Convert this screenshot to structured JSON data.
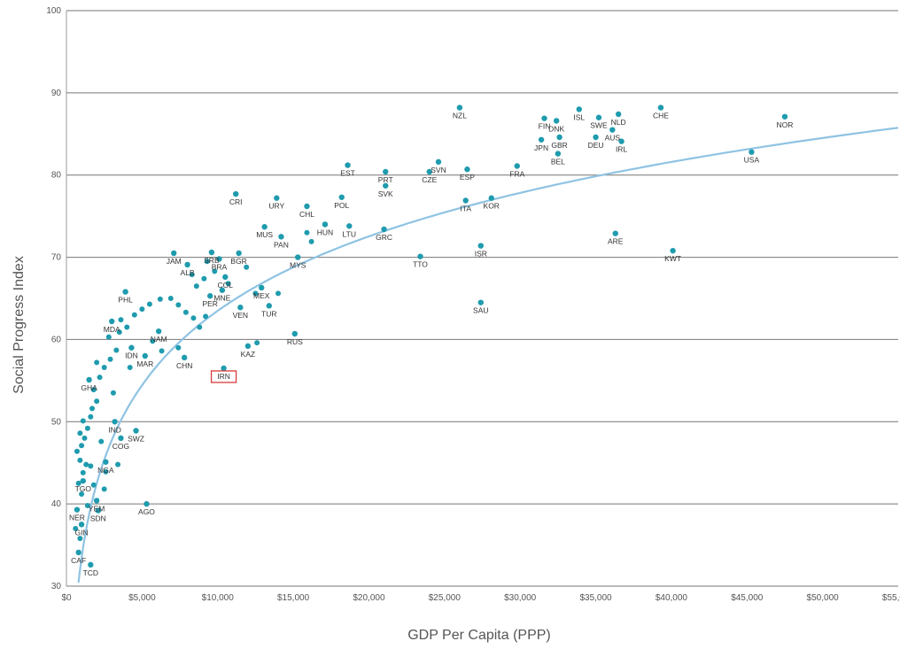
{
  "chart_data": {
    "type": "scatter",
    "xlabel": "GDP Per Capita (PPP)",
    "ylabel": "Social Progress Index",
    "xlim": [
      0,
      55000
    ],
    "ylim": [
      30,
      100
    ],
    "x_ticks": [
      {
        "value": 0,
        "label": "$0"
      },
      {
        "value": 5000,
        "label": "$5,000"
      },
      {
        "value": 10000,
        "label": "$10,000"
      },
      {
        "value": 15000,
        "label": "$15,000"
      },
      {
        "value": 20000,
        "label": "$20,000"
      },
      {
        "value": 25000,
        "label": "$25,000"
      },
      {
        "value": 30000,
        "label": "$30,000"
      },
      {
        "value": 35000,
        "label": "$35,000"
      },
      {
        "value": 40000,
        "label": "$40,000"
      },
      {
        "value": 45000,
        "label": "$45,000"
      },
      {
        "value": 50000,
        "label": "$50,000"
      },
      {
        "value": 55000,
        "label": "$55,000"
      }
    ],
    "y_ticks": [
      30,
      40,
      50,
      60,
      70,
      80,
      90,
      100
    ],
    "grid": "horizontal",
    "point_color": "#1f9bae",
    "trend_color": "#8fc3e3",
    "highlight_color": "#d83a3a",
    "highlight": "IRN",
    "trendline": {
      "type": "logarithmic",
      "a": 13.06,
      "b": -56.8
    },
    "labeled_points": [
      {
        "label": "NZL",
        "x": 26000,
        "y": 88.2
      },
      {
        "label": "CHE",
        "x": 39300,
        "y": 88.2
      },
      {
        "label": "NOR",
        "x": 47500,
        "y": 87.1
      },
      {
        "label": "USA",
        "x": 45300,
        "y": 82.8
      },
      {
        "label": "NLD",
        "x": 36500,
        "y": 87.4
      },
      {
        "label": "SWE",
        "x": 35200,
        "y": 87.0
      },
      {
        "label": "ISL",
        "x": 33900,
        "y": 88.0
      },
      {
        "label": "FIN",
        "x": 31600,
        "y": 86.9
      },
      {
        "label": "DNK",
        "x": 32400,
        "y": 86.6
      },
      {
        "label": "AUS",
        "x": 36100,
        "y": 85.5
      },
      {
        "label": "DEU",
        "x": 35000,
        "y": 84.6
      },
      {
        "label": "IRL",
        "x": 36700,
        "y": 84.1
      },
      {
        "label": "GBR",
        "x": 32600,
        "y": 84.6
      },
      {
        "label": "JPN",
        "x": 31400,
        "y": 84.3
      },
      {
        "label": "BEL",
        "x": 32500,
        "y": 82.6
      },
      {
        "label": "FRA",
        "x": 29800,
        "y": 81.1
      },
      {
        "label": "ESP",
        "x": 26500,
        "y": 80.7
      },
      {
        "label": "SVN",
        "x": 24600,
        "y": 81.6
      },
      {
        "label": "CZE",
        "x": 24000,
        "y": 80.4
      },
      {
        "label": "EST",
        "x": 18600,
        "y": 81.2
      },
      {
        "label": "PRT",
        "x": 21100,
        "y": 80.4
      },
      {
        "label": "SVK",
        "x": 21100,
        "y": 78.7
      },
      {
        "label": "ITA",
        "x": 26400,
        "y": 76.9
      },
      {
        "label": "KOR",
        "x": 28100,
        "y": 77.2
      },
      {
        "label": "POL",
        "x": 18200,
        "y": 77.3
      },
      {
        "label": "CRI",
        "x": 11200,
        "y": 77.7
      },
      {
        "label": "URY",
        "x": 13900,
        "y": 77.2
      },
      {
        "label": "CHL",
        "x": 15900,
        "y": 76.2
      },
      {
        "label": "MUS",
        "x": 13100,
        "y": 73.7
      },
      {
        "label": "HUN",
        "x": 17100,
        "y": 74.0
      },
      {
        "label": "LTU",
        "x": 18700,
        "y": 73.8
      },
      {
        "label": "GRC",
        "x": 21000,
        "y": 73.4
      },
      {
        "label": "ARE",
        "x": 36300,
        "y": 72.9
      },
      {
        "label": "KWT",
        "x": 40100,
        "y": 70.8
      },
      {
        "label": "ISR",
        "x": 27400,
        "y": 71.4
      },
      {
        "label": "TTO",
        "x": 23400,
        "y": 70.1
      },
      {
        "label": "SAU",
        "x": 27400,
        "y": 64.5
      },
      {
        "label": "PAN",
        "x": 14200,
        "y": 72.5
      },
      {
        "label": "MYS",
        "x": 15300,
        "y": 70.0
      },
      {
        "label": "JAM",
        "x": 7100,
        "y": 70.5
      },
      {
        "label": "ALB",
        "x": 8000,
        "y": 69.1
      },
      {
        "label": "SRB",
        "x": 9600,
        "y": 70.6
      },
      {
        "label": "BRA",
        "x": 10100,
        "y": 69.8
      },
      {
        "label": "BGR",
        "x": 11400,
        "y": 70.5
      },
      {
        "label": "COL",
        "x": 10500,
        "y": 67.6
      },
      {
        "label": "PER",
        "x": 9500,
        "y": 65.3
      },
      {
        "label": "MNE",
        "x": 10300,
        "y": 66.0
      },
      {
        "label": "MEX",
        "x": 12900,
        "y": 66.3
      },
      {
        "label": "TUR",
        "x": 13400,
        "y": 64.1
      },
      {
        "label": "RUS",
        "x": 15100,
        "y": 60.7
      },
      {
        "label": "VEN",
        "x": 11500,
        "y": 63.9
      },
      {
        "label": "KAZ",
        "x": 12000,
        "y": 59.2
      },
      {
        "label": "IRN",
        "x": 10400,
        "y": 56.5
      },
      {
        "label": "PHL",
        "x": 3900,
        "y": 65.8
      },
      {
        "label": "NAM",
        "x": 6100,
        "y": 61.0
      },
      {
        "label": "IDN",
        "x": 4300,
        "y": 59.0
      },
      {
        "label": "CHN",
        "x": 7800,
        "y": 57.8
      },
      {
        "label": "MAR",
        "x": 5200,
        "y": 58.0
      },
      {
        "label": "IND",
        "x": 3200,
        "y": 50.0
      },
      {
        "label": "SWZ",
        "x": 4600,
        "y": 48.9
      },
      {
        "label": "COG",
        "x": 3600,
        "y": 48.0
      },
      {
        "label": "GHA",
        "x": 1500,
        "y": 55.1
      },
      {
        "label": "NGA",
        "x": 2600,
        "y": 45.1
      },
      {
        "label": "AGO",
        "x": 5300,
        "y": 40.0
      },
      {
        "label": "YEM",
        "x": 2000,
        "y": 40.4
      },
      {
        "label": "SDN",
        "x": 2100,
        "y": 39.2
      },
      {
        "label": "NER",
        "x": 700,
        "y": 39.3
      },
      {
        "label": "GIN",
        "x": 1000,
        "y": 37.5
      },
      {
        "label": "CAF",
        "x": 800,
        "y": 34.1
      },
      {
        "label": "TCD",
        "x": 1600,
        "y": 32.6
      },
      {
        "label": "TGO",
        "x": 1100,
        "y": 42.8
      },
      {
        "label": "MDA",
        "x": 3000,
        "y": 62.2
      }
    ],
    "unlabeled_points": [
      {
        "x": 600,
        "y": 37.0
      },
      {
        "x": 900,
        "y": 35.8
      },
      {
        "x": 1000,
        "y": 41.2
      },
      {
        "x": 800,
        "y": 42.5
      },
      {
        "x": 1100,
        "y": 43.8
      },
      {
        "x": 1300,
        "y": 44.8
      },
      {
        "x": 900,
        "y": 45.3
      },
      {
        "x": 700,
        "y": 46.4
      },
      {
        "x": 1000,
        "y": 47.1
      },
      {
        "x": 1200,
        "y": 48.0
      },
      {
        "x": 900,
        "y": 48.6
      },
      {
        "x": 1400,
        "y": 49.2
      },
      {
        "x": 1100,
        "y": 50.1
      },
      {
        "x": 1600,
        "y": 50.6
      },
      {
        "x": 1700,
        "y": 51.6
      },
      {
        "x": 2000,
        "y": 52.5
      },
      {
        "x": 1800,
        "y": 53.9
      },
      {
        "x": 2200,
        "y": 55.4
      },
      {
        "x": 2500,
        "y": 56.6
      },
      {
        "x": 2000,
        "y": 57.2
      },
      {
        "x": 2900,
        "y": 57.6
      },
      {
        "x": 3300,
        "y": 58.7
      },
      {
        "x": 2800,
        "y": 60.3
      },
      {
        "x": 3500,
        "y": 60.9
      },
      {
        "x": 4000,
        "y": 61.5
      },
      {
        "x": 3600,
        "y": 62.4
      },
      {
        "x": 4500,
        "y": 63.0
      },
      {
        "x": 5000,
        "y": 63.7
      },
      {
        "x": 5500,
        "y": 64.3
      },
      {
        "x": 6200,
        "y": 64.9
      },
      {
        "x": 6900,
        "y": 65.0
      },
      {
        "x": 7400,
        "y": 64.2
      },
      {
        "x": 7900,
        "y": 63.3
      },
      {
        "x": 8400,
        "y": 62.6
      },
      {
        "x": 8800,
        "y": 61.5
      },
      {
        "x": 9200,
        "y": 62.8
      },
      {
        "x": 8600,
        "y": 66.5
      },
      {
        "x": 9100,
        "y": 67.4
      },
      {
        "x": 9800,
        "y": 68.3
      },
      {
        "x": 8300,
        "y": 67.9
      },
      {
        "x": 11900,
        "y": 68.8
      },
      {
        "x": 12500,
        "y": 65.6
      },
      {
        "x": 14000,
        "y": 65.6
      },
      {
        "x": 12600,
        "y": 59.6
      },
      {
        "x": 7400,
        "y": 59.0
      },
      {
        "x": 6300,
        "y": 58.6
      },
      {
        "x": 3100,
        "y": 53.5
      },
      {
        "x": 2300,
        "y": 47.6
      },
      {
        "x": 2600,
        "y": 43.9
      },
      {
        "x": 1800,
        "y": 42.3
      },
      {
        "x": 1600,
        "y": 44.6
      },
      {
        "x": 2500,
        "y": 41.8
      },
      {
        "x": 3400,
        "y": 44.8
      },
      {
        "x": 15900,
        "y": 73.0
      },
      {
        "x": 16200,
        "y": 71.9
      },
      {
        "x": 9300,
        "y": 69.5
      },
      {
        "x": 10700,
        "y": 66.8
      },
      {
        "x": 4200,
        "y": 56.6
      },
      {
        "x": 5700,
        "y": 59.8
      },
      {
        "x": 1400,
        "y": 39.8
      }
    ]
  }
}
